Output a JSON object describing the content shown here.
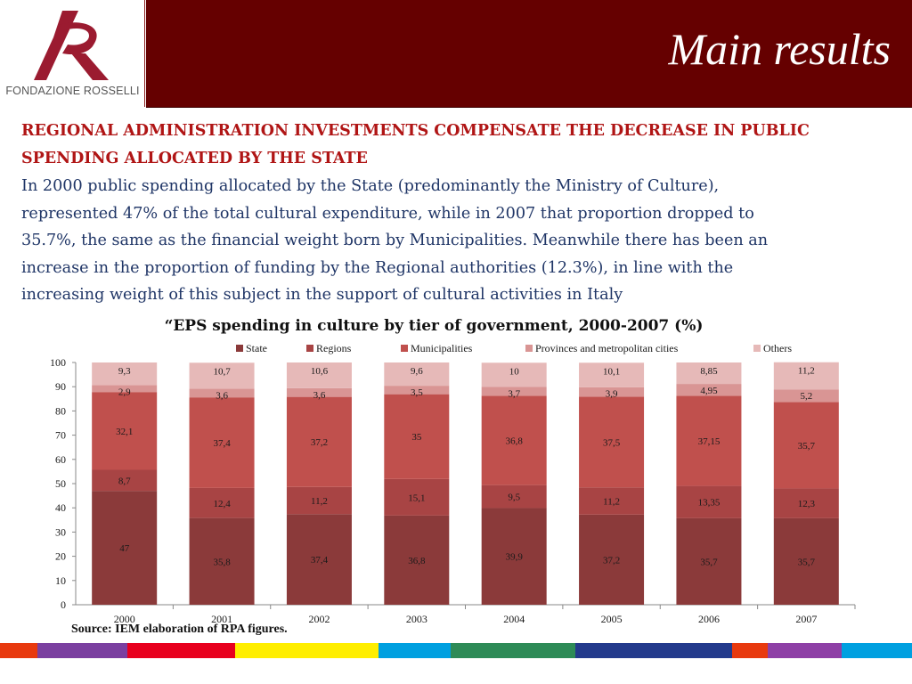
{
  "header": {
    "logo_text": "FONDAZIONE ROSSELLI",
    "title": "Main results"
  },
  "intro": {
    "headline_lines": [
      "REGIONAL ADMINISTRATION INVESTMENTS COMPENSATE THE DECREASE IN PUBLIC",
      "SPENDING ALLOCATED BY THE STATE"
    ],
    "body_lines": [
      "In 2000 public spending allocated by the State (predominantly the Ministry of Culture),",
      "represented 47% of the total cultural expenditure, while in 2007 that proportion dropped to",
      "35.7%, the same as the financial weight born by Municipalities. Meanwhile there has been an",
      "increase in the proportion of funding by the Regional authorities (12.3%), in line with the",
      "increasing weight of this subject in the support of cultural activities in Italy"
    ]
  },
  "chart_data": {
    "type": "bar",
    "stacked": true,
    "title": "“EPS spending in culture by tier of government, 2000-2007 (%)",
    "categories": [
      "2000",
      "2001",
      "2002",
      "2003",
      "2004",
      "2005",
      "2006",
      "2007"
    ],
    "ylim": [
      0,
      100
    ],
    "yticks": [
      0,
      10,
      20,
      30,
      40,
      50,
      60,
      70,
      80,
      90,
      100
    ],
    "legend_position": "top",
    "series": [
      {
        "name": "State",
        "color": "#8b3a3a",
        "values": [
          47,
          35.8,
          37.4,
          36.8,
          39.9,
          37.2,
          35.7,
          35.7
        ],
        "labels": [
          "47",
          "35,8",
          "37,4",
          "36,8",
          "39,9",
          "37,2",
          "35,7",
          "35,7"
        ]
      },
      {
        "name": "Regions",
        "color": "#a84444",
        "values": [
          8.7,
          12.4,
          11.2,
          15.1,
          9.5,
          11.2,
          13.35,
          12.3
        ],
        "labels": [
          "8,7",
          "12,4",
          "11,2",
          "15,1",
          "9,5",
          "11,2",
          "13,35",
          "12,3"
        ]
      },
      {
        "name": "Municipalities",
        "color": "#c0504d",
        "values": [
          32.1,
          37.4,
          37.2,
          35,
          36.8,
          37.5,
          37.15,
          35.7
        ],
        "labels": [
          "32,1",
          "37,4",
          "37,2",
          "35",
          "36,8",
          "37,5",
          "37,15",
          "35,7"
        ]
      },
      {
        "name": "Provinces and metropolitan cities",
        "color": "#d99594",
        "values": [
          2.9,
          3.6,
          3.6,
          3.5,
          3.7,
          3.9,
          4.95,
          5.2
        ],
        "labels": [
          "2,9",
          "3,6",
          "3,6",
          "3,5",
          "3,7",
          "3,9",
          "4,95",
          "5,2"
        ]
      },
      {
        "name": "Others",
        "color": "#e6b9b8",
        "values": [
          9.3,
          10.7,
          10.6,
          9.6,
          10,
          10.1,
          8.85,
          11.2
        ],
        "labels": [
          "9,3",
          "10,7",
          "10,6",
          "9,6",
          "10",
          "10,1",
          "8,85",
          "11,2"
        ]
      }
    ]
  },
  "source_note": "Source: IEM elaboration of RPA figures.",
  "footer_colors": [
    "#e8390e",
    "#7b3fa0",
    "#e8001e",
    "#ffee00",
    "#00a0e0",
    "#2e8b57",
    "#233a8c",
    "#e8390e",
    "#8e3fa6",
    "#00a0e0"
  ]
}
